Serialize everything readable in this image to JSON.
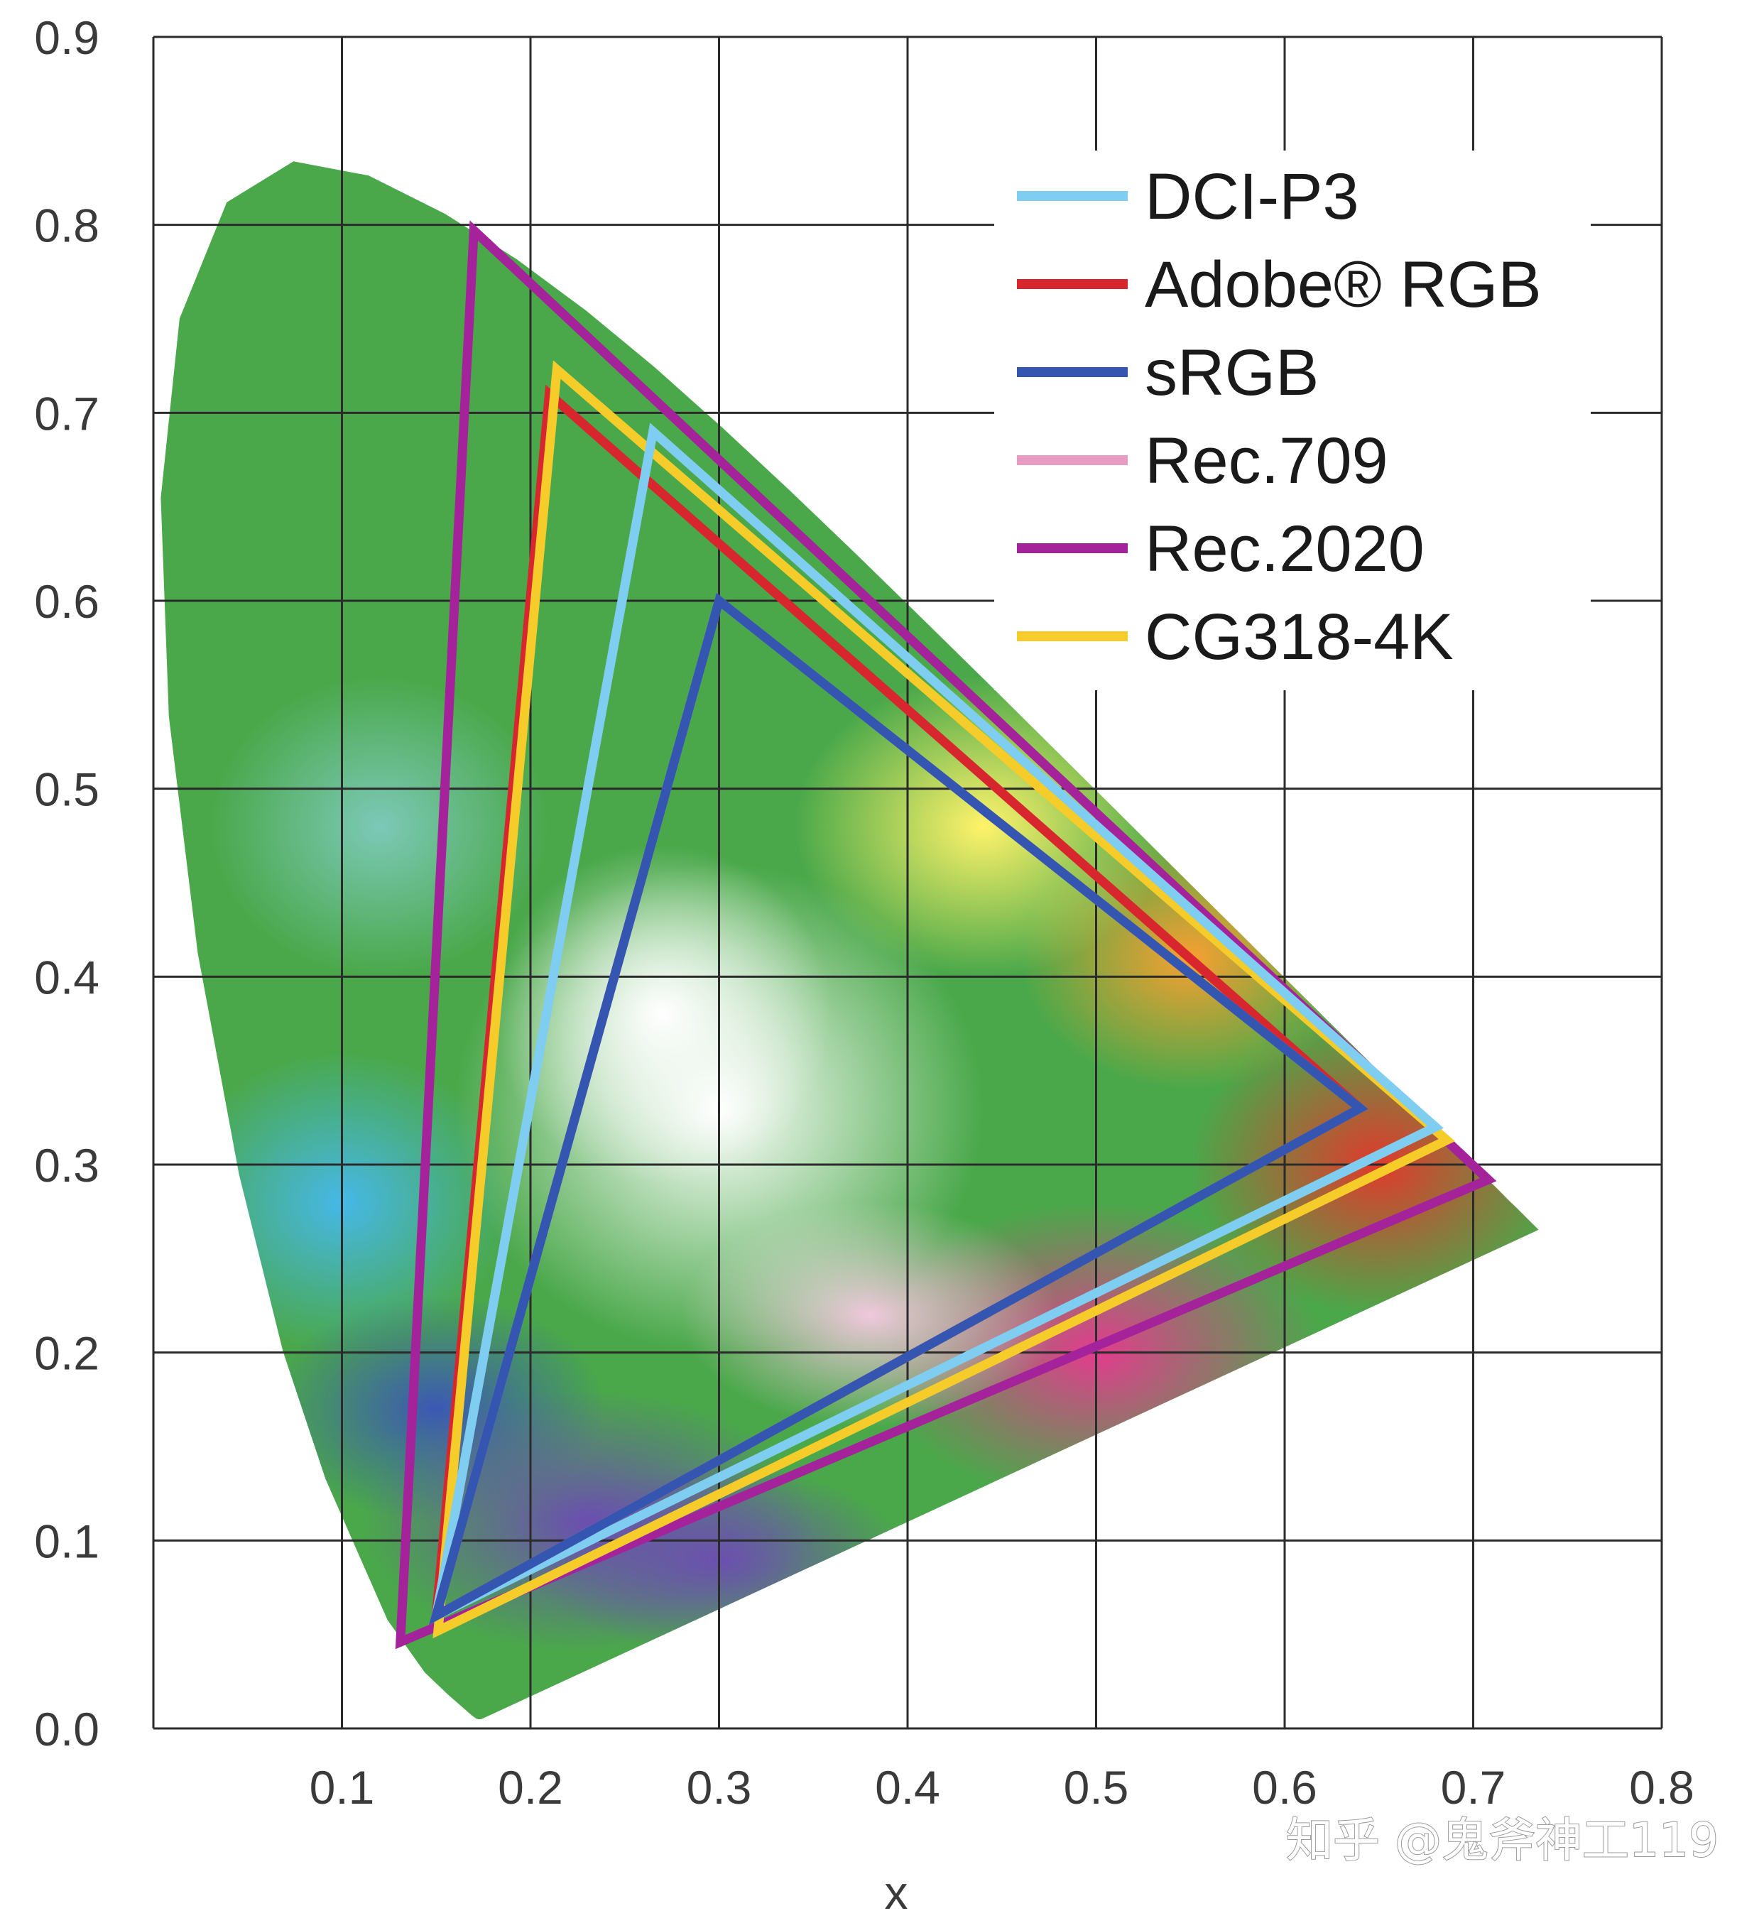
{
  "chart_data": {
    "type": "line",
    "title": "",
    "xlabel": "x",
    "ylabel": "",
    "xlim": [
      0,
      0.8
    ],
    "ylim": [
      0,
      0.9
    ],
    "x_ticks": [
      "0.1",
      "0.2",
      "0.3",
      "0.4",
      "0.5",
      "0.6",
      "0.7",
      "0.8"
    ],
    "y_ticks": [
      "0.0",
      "0.1",
      "0.2",
      "0.3",
      "0.4",
      "0.5",
      "0.6",
      "0.7",
      "0.8",
      "0.9"
    ],
    "grid": true,
    "legend_position": "top-right",
    "series": [
      {
        "name": "DCI-P3",
        "color": "#7fcdf0",
        "points": [
          [
            0.68,
            0.32
          ],
          [
            0.265,
            0.69
          ],
          [
            0.15,
            0.06
          ]
        ]
      },
      {
        "name": "Adobe® RGB",
        "color": "#d8262e",
        "points": [
          [
            0.64,
            0.33
          ],
          [
            0.21,
            0.71
          ],
          [
            0.15,
            0.06
          ]
        ]
      },
      {
        "name": "sRGB",
        "color": "#3456b0",
        "points": [
          [
            0.64,
            0.33
          ],
          [
            0.3,
            0.6
          ],
          [
            0.15,
            0.06
          ]
        ]
      },
      {
        "name": "Rec.709",
        "color": "#e89cc4",
        "points": [
          [
            0.64,
            0.33
          ],
          [
            0.3,
            0.6
          ],
          [
            0.15,
            0.06
          ]
        ]
      },
      {
        "name": "Rec.2020",
        "color": "#a5239a",
        "points": [
          [
            0.708,
            0.292
          ],
          [
            0.17,
            0.797
          ],
          [
            0.131,
            0.046
          ]
        ]
      },
      {
        "name": "CG318-4K",
        "color": "#f5cc2a",
        "points": [
          [
            0.686,
            0.313
          ],
          [
            0.214,
            0.723
          ],
          [
            0.151,
            0.052
          ]
        ]
      }
    ]
  },
  "watermark": "知乎 @鬼斧神工119"
}
